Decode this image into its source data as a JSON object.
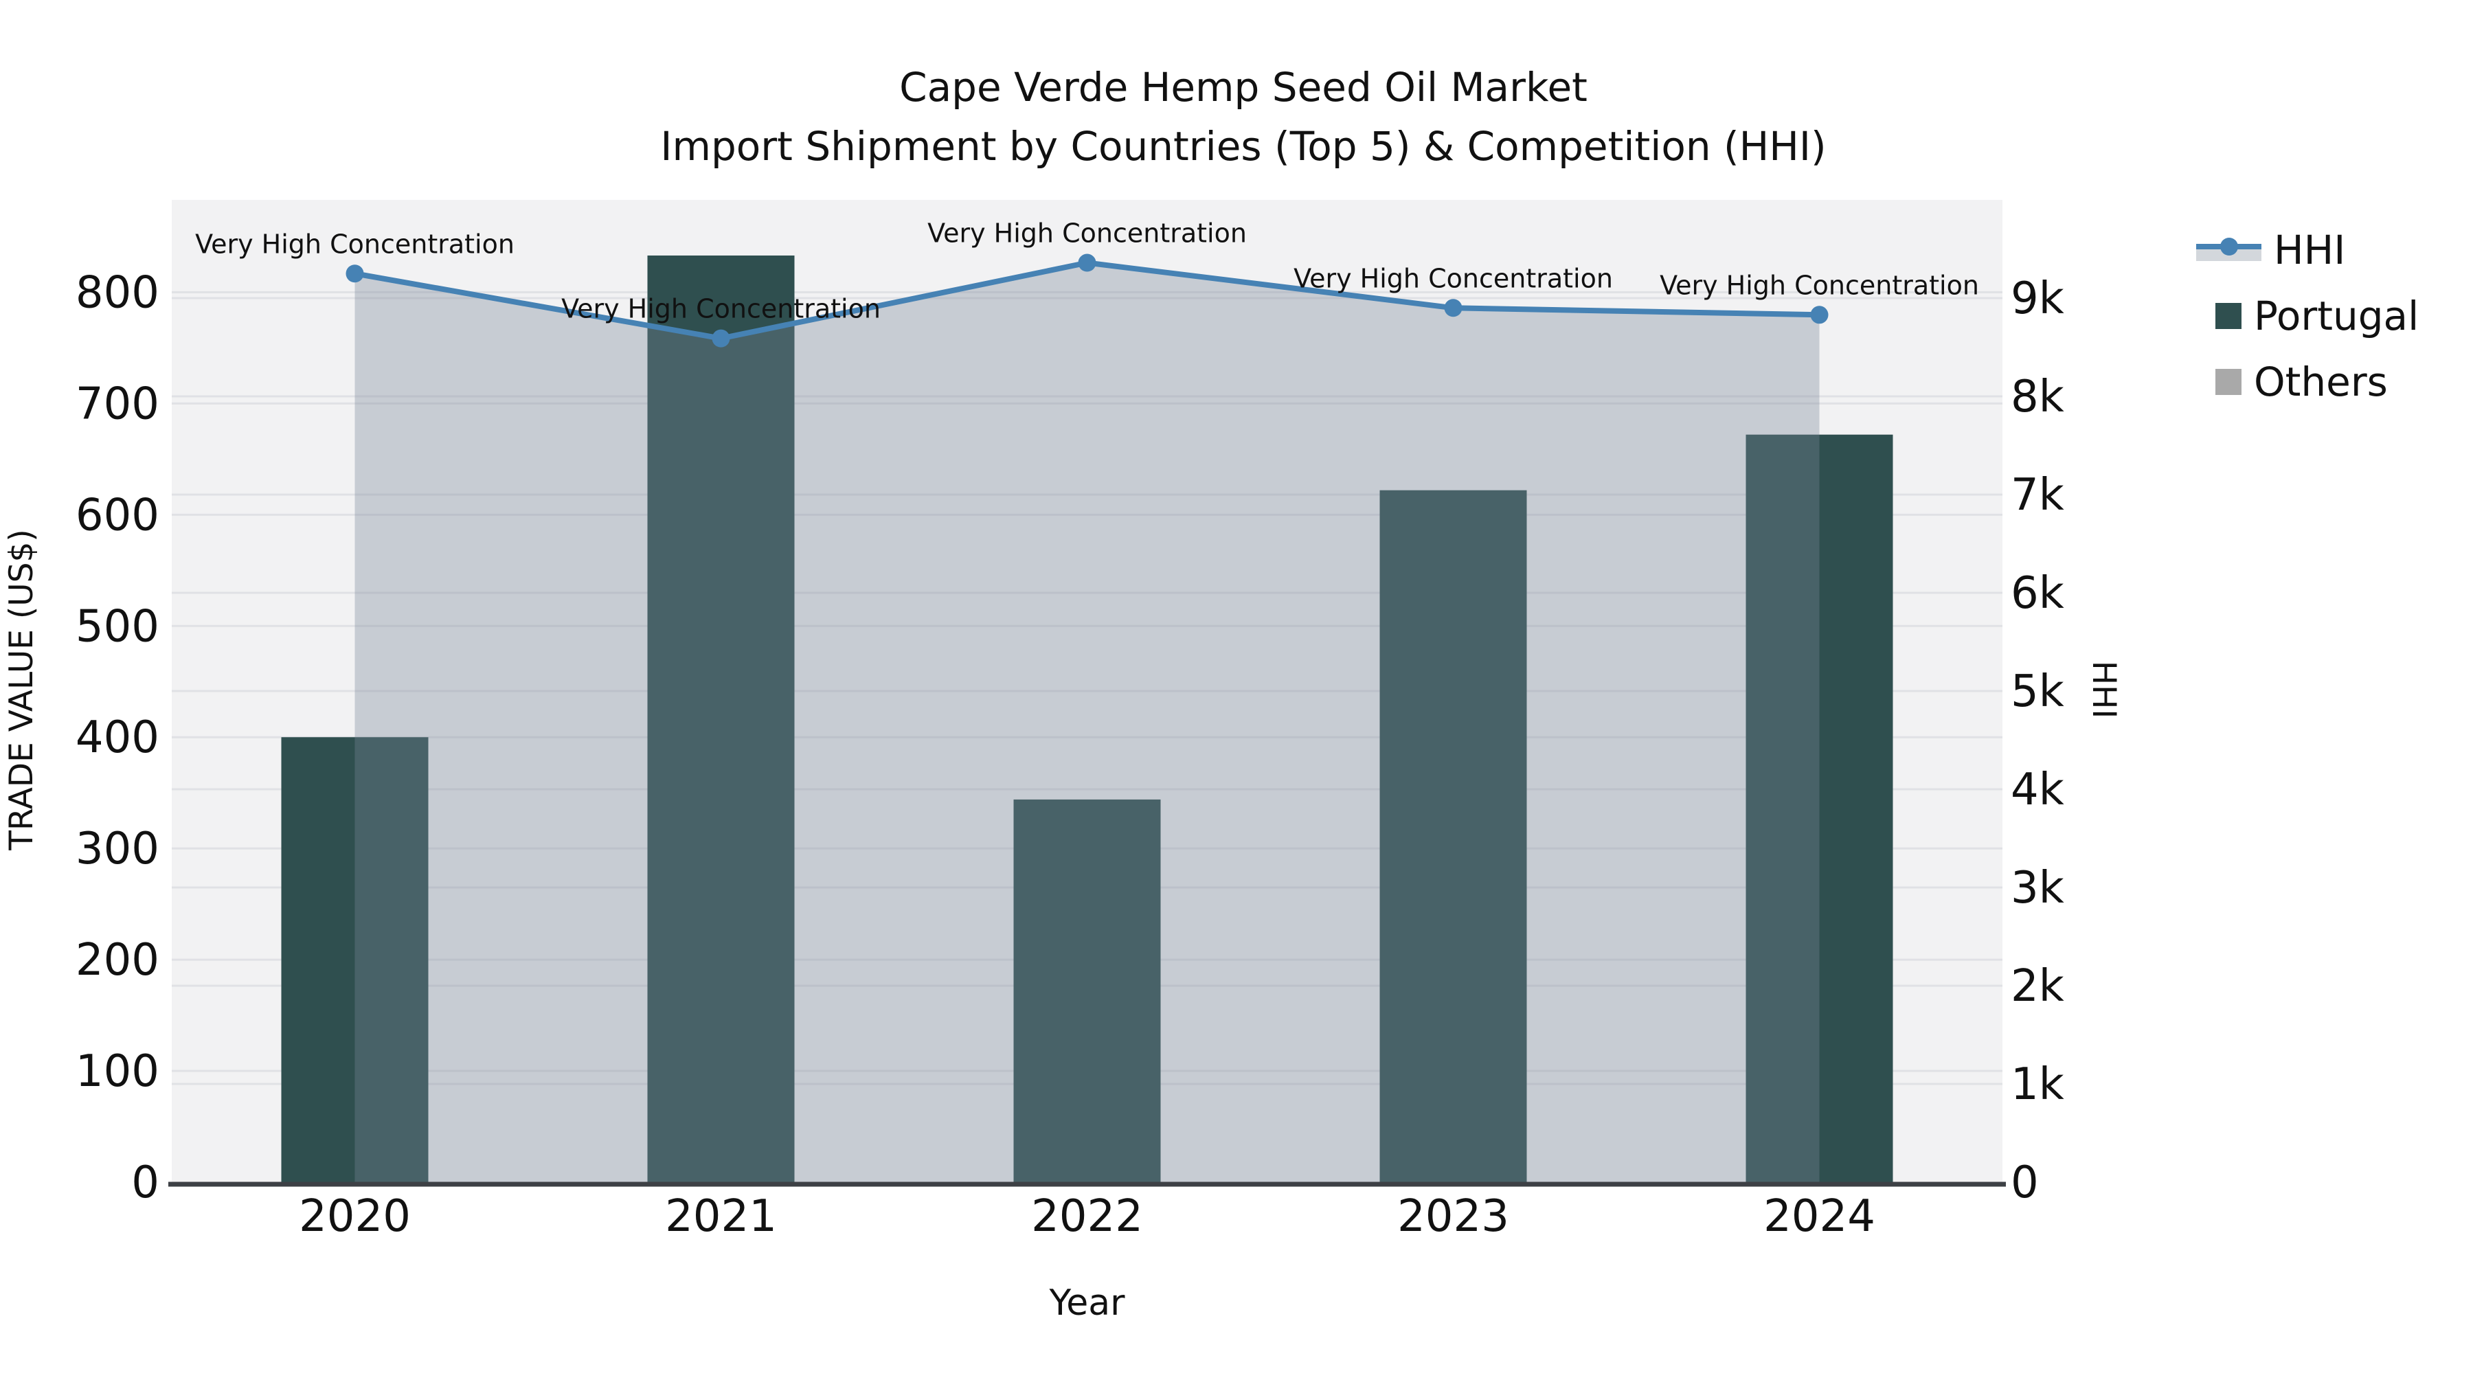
{
  "title": {
    "line1": "Cape Verde Hemp Seed Oil Market",
    "line2": "Import Shipment by Countries (Top 5) & Competition (HHI)"
  },
  "chart_data": {
    "type": "bar+line",
    "title": "Cape Verde Hemp Seed Oil Market\nImport Shipment by Countries (Top 5) & Competition (HHI)",
    "xlabel": "Year",
    "ylabel_left": "TRADE VALUE (US$)",
    "ylabel_right": "HHI",
    "categories": [
      "2020",
      "2021",
      "2022",
      "2023",
      "2024"
    ],
    "series": [
      {
        "name": "Portugal",
        "type": "bar",
        "axis": "left",
        "values": [
          400,
          833,
          344,
          622,
          672
        ]
      },
      {
        "name": "Others",
        "type": "bar",
        "axis": "left",
        "values": [
          0,
          0,
          0,
          0,
          0
        ]
      },
      {
        "name": "HHI",
        "type": "line",
        "axis": "right",
        "values": [
          9250,
          8590,
          9360,
          8900,
          8830
        ]
      }
    ],
    "annotations": [
      {
        "text": "Very High Concentration",
        "category": "2020"
      },
      {
        "text": "Very High Concentration",
        "category": "2021"
      },
      {
        "text": "Very High Concentration",
        "category": "2022"
      },
      {
        "text": "Very High Concentration",
        "category": "2023"
      },
      {
        "text": "Very High Concentration",
        "category": "2024"
      }
    ],
    "left_axis": {
      "min": 0,
      "max": 883,
      "tick_values": [
        0,
        100,
        200,
        300,
        400,
        500,
        600,
        700,
        800
      ],
      "tick_labels": [
        "0",
        "100",
        "200",
        "300",
        "400",
        "500",
        "600",
        "700",
        "800"
      ]
    },
    "right_axis": {
      "min": 0,
      "max": 10000,
      "tick_values": [
        0,
        1000,
        2000,
        3000,
        4000,
        5000,
        6000,
        7000,
        8000,
        9000
      ],
      "tick_labels": [
        "0",
        "1k",
        "2k",
        "3k",
        "4k",
        "5k",
        "6k",
        "7k",
        "8k",
        "9k"
      ]
    },
    "legend": [
      {
        "label": "HHI",
        "marker": "line"
      },
      {
        "label": "Portugal",
        "marker": "square"
      },
      {
        "label": "Others",
        "marker": "square"
      }
    ],
    "legend_position": "outside-upper-right",
    "grid": true,
    "colors": {
      "portugal_bar": "#2F4F4F",
      "others_bar": "#A9A9A9",
      "hhi_line": "#4682B4",
      "hhi_area": "rgba(119,136,153,0.35)",
      "plot_background": "#f2f2f3",
      "gridline": "#e0e1e5",
      "axis_line": "#3d4045",
      "text": "#111111"
    }
  }
}
